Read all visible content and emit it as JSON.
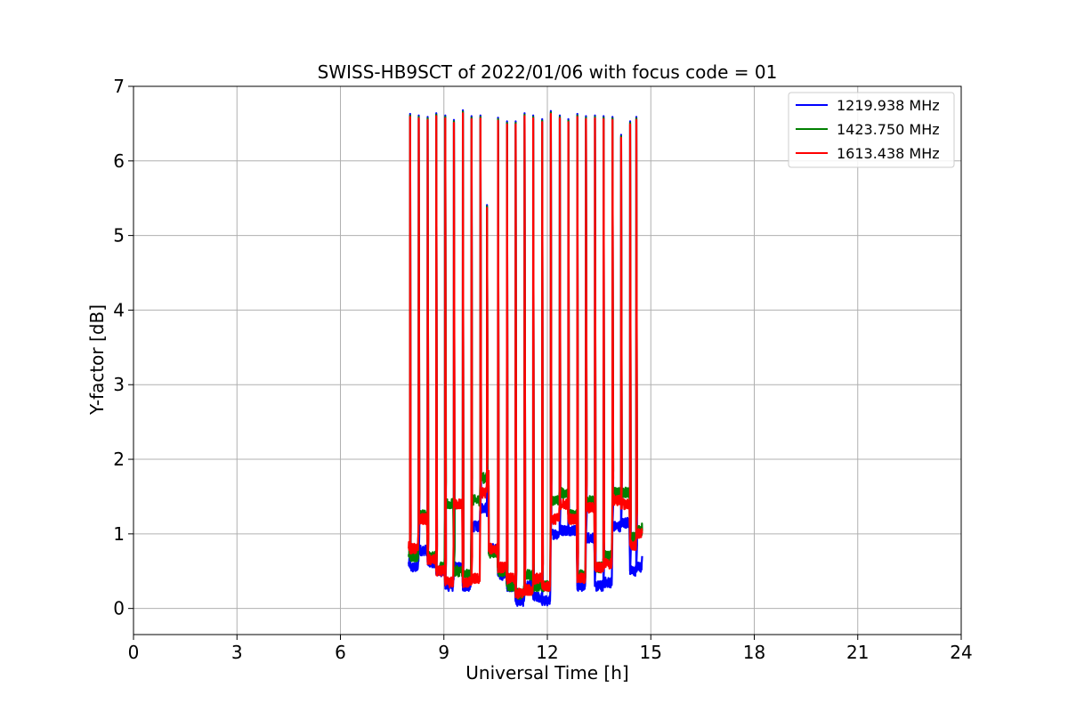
{
  "chart_data": {
    "type": "line",
    "title": "SWISS-HB9SCT of 2022/01/06 with focus code = 01",
    "xlabel": "Universal Time [h]",
    "ylabel": "Y-factor [dB]",
    "xlim": [
      0,
      24
    ],
    "ylim": [
      -0.35,
      7
    ],
    "xticks": [
      0,
      3,
      6,
      9,
      12,
      15,
      18,
      21,
      24
    ],
    "yticks": [
      0,
      1,
      2,
      3,
      4,
      5,
      6,
      7
    ],
    "grid": true,
    "legend_position": "top-right",
    "spikes": [
      {
        "x": 8.02,
        "y": 6.63
      },
      {
        "x": 8.27,
        "y": 6.61
      },
      {
        "x": 8.53,
        "y": 6.59
      },
      {
        "x": 8.78,
        "y": 6.64
      },
      {
        "x": 9.04,
        "y": 6.61
      },
      {
        "x": 9.29,
        "y": 6.55
      },
      {
        "x": 9.55,
        "y": 6.68
      },
      {
        "x": 9.8,
        "y": 6.6
      },
      {
        "x": 10.06,
        "y": 6.61
      },
      {
        "x": 10.25,
        "y": 5.41
      },
      {
        "x": 10.57,
        "y": 6.58
      },
      {
        "x": 10.83,
        "y": 6.53
      },
      {
        "x": 11.08,
        "y": 6.53
      },
      {
        "x": 11.34,
        "y": 6.64
      },
      {
        "x": 11.59,
        "y": 6.61
      },
      {
        "x": 11.85,
        "y": 6.56
      },
      {
        "x": 12.1,
        "y": 6.67
      },
      {
        "x": 12.36,
        "y": 6.61
      },
      {
        "x": 12.61,
        "y": 6.56
      },
      {
        "x": 12.87,
        "y": 6.63
      },
      {
        "x": 13.12,
        "y": 6.6
      },
      {
        "x": 13.38,
        "y": 6.61
      },
      {
        "x": 13.63,
        "y": 6.6
      },
      {
        "x": 13.89,
        "y": 6.59
      },
      {
        "x": 14.14,
        "y": 6.35
      },
      {
        "x": 14.4,
        "y": 6.53
      },
      {
        "x": 14.58,
        "y": 6.59
      }
    ],
    "series": [
      {
        "name": "1219.938 MHz",
        "color": "#0000ff",
        "baseline": [
          [
            7.98,
            0.6
          ],
          [
            8.02,
            0.55
          ],
          [
            8.27,
            0.78
          ],
          [
            8.53,
            0.62
          ],
          [
            8.78,
            0.5
          ],
          [
            9.04,
            0.3
          ],
          [
            9.29,
            0.55
          ],
          [
            9.55,
            0.3
          ],
          [
            9.8,
            1.1
          ],
          [
            10.06,
            1.35
          ],
          [
            10.25,
            1.3
          ],
          [
            10.3,
            0.8
          ],
          [
            10.57,
            0.45
          ],
          [
            10.83,
            0.3
          ],
          [
            11.08,
            0.1
          ],
          [
            11.34,
            0.3
          ],
          [
            11.59,
            0.15
          ],
          [
            11.85,
            0.1
          ],
          [
            12.1,
            1.0
          ],
          [
            12.36,
            1.05
          ],
          [
            12.61,
            1.05
          ],
          [
            12.87,
            0.3
          ],
          [
            13.12,
            0.95
          ],
          [
            13.38,
            0.3
          ],
          [
            13.63,
            0.35
          ],
          [
            13.89,
            1.1
          ],
          [
            14.14,
            1.15
          ],
          [
            14.4,
            0.5
          ],
          [
            14.58,
            0.55
          ],
          [
            14.75,
            0.7
          ]
        ]
      },
      {
        "name": "1423.750 MHz",
        "color": "#008000",
        "baseline": [
          [
            7.98,
            0.75
          ],
          [
            8.02,
            0.7
          ],
          [
            8.27,
            1.25
          ],
          [
            8.53,
            0.7
          ],
          [
            8.78,
            0.55
          ],
          [
            9.04,
            1.4
          ],
          [
            9.29,
            0.5
          ],
          [
            9.55,
            0.45
          ],
          [
            9.8,
            1.45
          ],
          [
            10.06,
            1.75
          ],
          [
            10.25,
            1.7
          ],
          [
            10.3,
            0.75
          ],
          [
            10.57,
            0.5
          ],
          [
            10.83,
            0.3
          ],
          [
            11.08,
            0.2
          ],
          [
            11.34,
            0.45
          ],
          [
            11.59,
            0.3
          ],
          [
            11.85,
            0.3
          ],
          [
            12.1,
            1.45
          ],
          [
            12.36,
            1.55
          ],
          [
            12.61,
            1.25
          ],
          [
            12.87,
            0.45
          ],
          [
            13.12,
            1.45
          ],
          [
            13.38,
            0.55
          ],
          [
            13.63,
            0.7
          ],
          [
            13.89,
            1.55
          ],
          [
            14.14,
            1.55
          ],
          [
            14.4,
            0.95
          ],
          [
            14.58,
            1.05
          ],
          [
            14.75,
            1.1
          ]
        ]
      },
      {
        "name": "1613.438 MHz",
        "color": "#ff0000",
        "baseline": [
          [
            7.98,
            0.85
          ],
          [
            8.02,
            0.8
          ],
          [
            8.27,
            1.2
          ],
          [
            8.53,
            0.65
          ],
          [
            8.78,
            0.5
          ],
          [
            9.04,
            0.35
          ],
          [
            9.29,
            1.4
          ],
          [
            9.55,
            0.35
          ],
          [
            9.8,
            0.4
          ],
          [
            10.06,
            1.55
          ],
          [
            10.25,
            1.8
          ],
          [
            10.3,
            0.8
          ],
          [
            10.57,
            0.55
          ],
          [
            10.83,
            0.4
          ],
          [
            11.08,
            0.2
          ],
          [
            11.34,
            0.25
          ],
          [
            11.59,
            0.4
          ],
          [
            11.85,
            0.3
          ],
          [
            12.1,
            1.2
          ],
          [
            12.36,
            1.4
          ],
          [
            12.61,
            1.2
          ],
          [
            12.87,
            0.4
          ],
          [
            13.12,
            1.35
          ],
          [
            13.38,
            0.55
          ],
          [
            13.63,
            0.6
          ],
          [
            13.89,
            1.45
          ],
          [
            14.14,
            1.4
          ],
          [
            14.4,
            0.85
          ],
          [
            14.58,
            1.0
          ],
          [
            14.75,
            1.0
          ]
        ]
      }
    ]
  }
}
